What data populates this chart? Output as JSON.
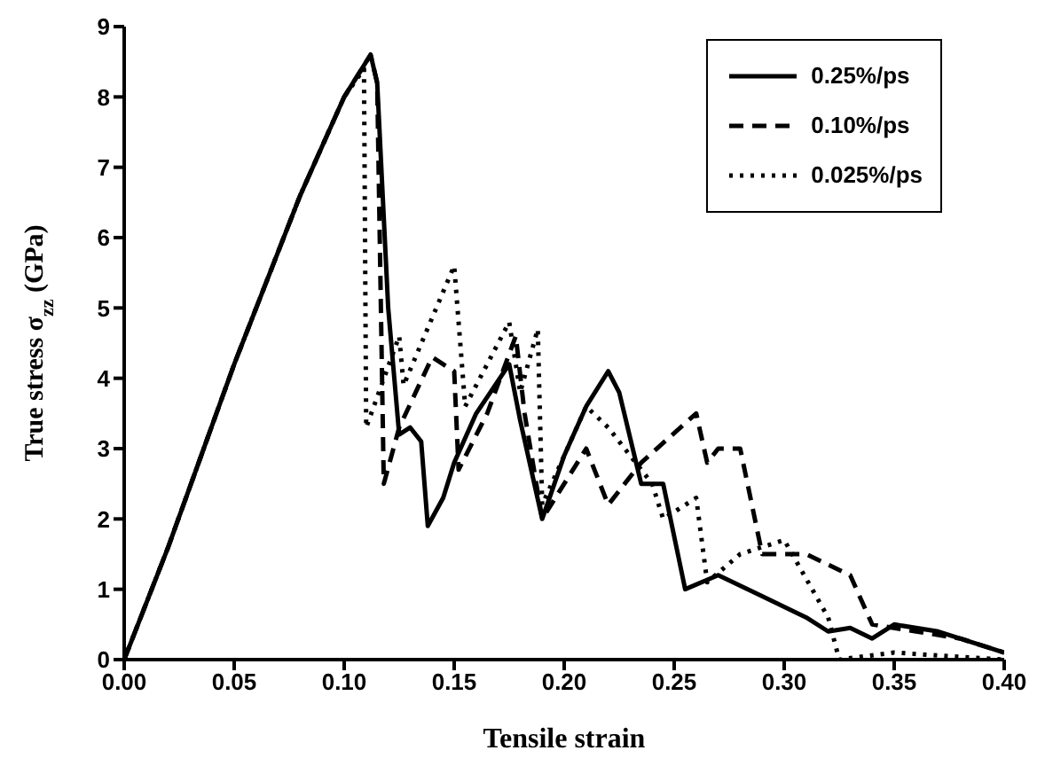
{
  "chart_data": {
    "type": "line",
    "xlabel": "Tensile strain",
    "ylabel": "True stress σ$_{zz}$ (GPa)",
    "xlim": [
      0,
      0.4
    ],
    "ylim": [
      0,
      9
    ],
    "xticks": [
      {
        "value": 0,
        "label": "0.00"
      },
      {
        "value": 0.05,
        "label": "0.05"
      },
      {
        "value": 0.1,
        "label": "0.10"
      },
      {
        "value": 0.15,
        "label": "0.15"
      },
      {
        "value": 0.2,
        "label": "0.20"
      },
      {
        "value": 0.25,
        "label": "0.25"
      },
      {
        "value": 0.3,
        "label": "0.30"
      },
      {
        "value": 0.35,
        "label": "0.35"
      },
      {
        "value": 0.4,
        "label": "0.40"
      }
    ],
    "yticks": [
      0,
      1,
      2,
      3,
      4,
      5,
      6,
      7,
      8,
      9
    ],
    "legend": "top right",
    "marker": "none",
    "series": [
      {
        "name": "0.25%/ps",
        "color": "#000000",
        "line_style": "solid",
        "x": [
          0,
          0.02,
          0.05,
          0.08,
          0.1,
          0.112,
          0.115,
          0.12,
          0.125,
          0.13,
          0.135,
          0.138,
          0.145,
          0.15,
          0.16,
          0.175,
          0.18,
          0.19,
          0.2,
          0.21,
          0.22,
          0.225,
          0.235,
          0.245,
          0.255,
          0.27,
          0.29,
          0.31,
          0.32,
          0.33,
          0.34,
          0.35,
          0.37,
          0.39,
          0.4
        ],
        "values": [
          0,
          1.6,
          4.2,
          6.6,
          8,
          8.6,
          8.2,
          5,
          3.2,
          3.3,
          3.1,
          1.9,
          2.3,
          2.8,
          3.5,
          4.2,
          3.4,
          2,
          2.9,
          3.6,
          4.1,
          3.8,
          2.5,
          2.5,
          1,
          1.2,
          0.9,
          0.6,
          0.4,
          0.45,
          0.3,
          0.5,
          0.4,
          0.2,
          0.1
        ]
      },
      {
        "name": "0.10%/ps",
        "color": "#000000",
        "line_style": "dashed",
        "x": [
          0,
          0.02,
          0.05,
          0.08,
          0.1,
          0.112,
          0.115,
          0.118,
          0.125,
          0.14,
          0.15,
          0.152,
          0.165,
          0.178,
          0.182,
          0.19,
          0.21,
          0.22,
          0.235,
          0.26,
          0.265,
          0.27,
          0.28,
          0.29,
          0.31,
          0.33,
          0.34,
          0.36,
          0.38,
          0.4
        ],
        "values": [
          0,
          1.6,
          4.2,
          6.6,
          8,
          8.6,
          8.2,
          2.5,
          3.3,
          4.3,
          4.1,
          2.7,
          3.5,
          4.6,
          3.5,
          2,
          3,
          2.2,
          2.8,
          3.5,
          2.8,
          3,
          3,
          1.5,
          1.5,
          1.2,
          0.5,
          0.4,
          0.3,
          0.1
        ]
      },
      {
        "name": "0.025%/ps",
        "color": "#000000",
        "line_style": "dotted",
        "x": [
          0,
          0.02,
          0.05,
          0.08,
          0.1,
          0.109,
          0.11,
          0.125,
          0.127,
          0.15,
          0.155,
          0.175,
          0.18,
          0.188,
          0.19,
          0.21,
          0.22,
          0.24,
          0.245,
          0.26,
          0.265,
          0.28,
          0.3,
          0.32,
          0.325,
          0.35,
          0.4
        ],
        "values": [
          0,
          1.6,
          4.2,
          6.6,
          8,
          8.4,
          3.3,
          4.6,
          3.9,
          5.6,
          3.6,
          4.8,
          3.8,
          4.7,
          2.2,
          3.6,
          3.3,
          2.5,
          2,
          2.3,
          1.1,
          1.5,
          1.7,
          0.6,
          0,
          0.1,
          0
        ]
      }
    ]
  }
}
